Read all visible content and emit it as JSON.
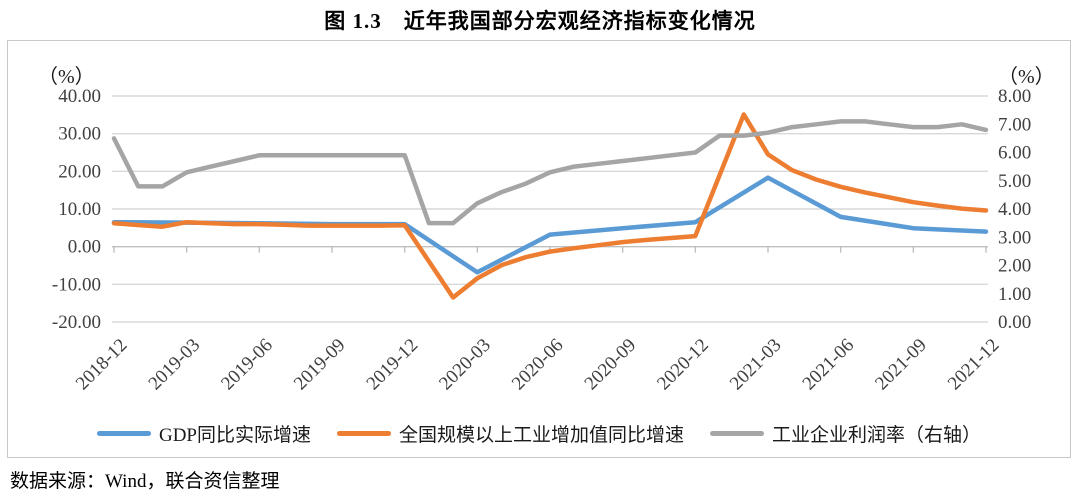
{
  "title": "图 1.3　近年我国部分宏观经济指标变化情况",
  "source": "数据来源：Wind，联合资信整理",
  "chart_data": {
    "type": "line",
    "title": "图 1.3　近年我国部分宏观经济指标变化情况",
    "grid": true,
    "legend_position": "bottom",
    "gridline_color": "#d9d9d9",
    "axis_line_color": "#bfbfbf",
    "tick_label_color": "#404040",
    "months_span": 36,
    "left_axis": {
      "unit_label": "（%）",
      "min": -20,
      "max": 40,
      "ticks": [
        {
          "label": "40.00",
          "value": 40
        },
        {
          "label": "30.00",
          "value": 30
        },
        {
          "label": "20.00",
          "value": 20
        },
        {
          "label": "10.00",
          "value": 10
        },
        {
          "label": "0.00",
          "value": 0
        },
        {
          "label": "-10.00",
          "value": -10
        },
        {
          "label": "-20.00",
          "value": -20
        }
      ]
    },
    "right_axis": {
      "unit_label": "（%）",
      "min": 0,
      "max": 8,
      "ticks": [
        {
          "label": "8.00",
          "value": 8
        },
        {
          "label": "7.00",
          "value": 7
        },
        {
          "label": "6.00",
          "value": 6
        },
        {
          "label": "5.00",
          "value": 5
        },
        {
          "label": "4.00",
          "value": 4
        },
        {
          "label": "3.00",
          "value": 3
        },
        {
          "label": "2.00",
          "value": 2
        },
        {
          "label": "1.00",
          "value": 1
        },
        {
          "label": "0.00",
          "value": 0
        }
      ]
    },
    "x_ticks": [
      {
        "label": "2018-12",
        "month": 0
      },
      {
        "label": "2019-03",
        "month": 3
      },
      {
        "label": "2019-06",
        "month": 6
      },
      {
        "label": "2019-09",
        "month": 9
      },
      {
        "label": "2019-12",
        "month": 12
      },
      {
        "label": "2020-03",
        "month": 15
      },
      {
        "label": "2020-06",
        "month": 18
      },
      {
        "label": "2020-09",
        "month": 21
      },
      {
        "label": "2020-12",
        "month": 24
      },
      {
        "label": "2021-03",
        "month": 27
      },
      {
        "label": "2021-06",
        "month": 30
      },
      {
        "label": "2021-09",
        "month": 33
      },
      {
        "label": "2021-12",
        "month": 36
      }
    ],
    "series": [
      {
        "name": "GDP同比实际增速",
        "key": "gdp",
        "color": "#5B9BD5",
        "axis": "left",
        "x": [
          0,
          3,
          6,
          9,
          12,
          15,
          18,
          21,
          24,
          27,
          30,
          33,
          36
        ],
        "values": [
          6.5,
          6.4,
          6.2,
          6.0,
          6.0,
          -6.8,
          3.2,
          4.9,
          6.5,
          18.3,
          7.9,
          4.9,
          4.0
        ]
      },
      {
        "name": "全国规模以上工业增加值同比增速",
        "key": "industrial-value-added",
        "color": "#ED7D31",
        "axis": "left",
        "x": [
          0,
          2,
          3,
          4,
          5,
          6,
          7,
          8,
          9,
          10,
          11,
          12,
          14,
          15,
          16,
          17,
          18,
          19,
          20,
          21,
          22,
          23,
          24,
          26,
          27,
          28,
          29,
          30,
          31,
          32,
          33,
          34,
          35,
          36
        ],
        "values": [
          6.2,
          5.3,
          6.5,
          6.2,
          6.0,
          6.0,
          5.8,
          5.6,
          5.6,
          5.6,
          5.6,
          5.7,
          -13.5,
          -8.4,
          -4.9,
          -2.8,
          -1.3,
          -0.4,
          0.4,
          1.2,
          1.8,
          2.3,
          2.8,
          35.1,
          24.5,
          20.3,
          17.8,
          15.9,
          14.4,
          13.1,
          11.8,
          10.9,
          10.1,
          9.6
        ]
      },
      {
        "name": "工业企业利润率（右轴）",
        "key": "profit-margin",
        "color": "#A5A5A5",
        "axis": "right",
        "x": [
          0,
          1,
          2,
          3,
          4,
          5,
          6,
          7,
          8,
          9,
          10,
          11,
          12,
          13,
          14,
          15,
          16,
          17,
          18,
          19,
          20,
          21,
          22,
          23,
          24,
          25,
          26,
          27,
          28,
          29,
          30,
          31,
          32,
          33,
          34,
          35,
          36
        ],
        "values": [
          6.5,
          4.8,
          4.8,
          5.3,
          5.5,
          5.7,
          5.9,
          5.9,
          5.9,
          5.9,
          5.9,
          5.9,
          5.9,
          3.5,
          3.5,
          4.2,
          4.6,
          4.9,
          5.3,
          5.5,
          5.6,
          5.7,
          5.8,
          5.9,
          6.0,
          6.6,
          6.6,
          6.7,
          6.9,
          7.0,
          7.1,
          7.1,
          7.0,
          6.9,
          6.9,
          7.0,
          6.8
        ]
      }
    ]
  }
}
